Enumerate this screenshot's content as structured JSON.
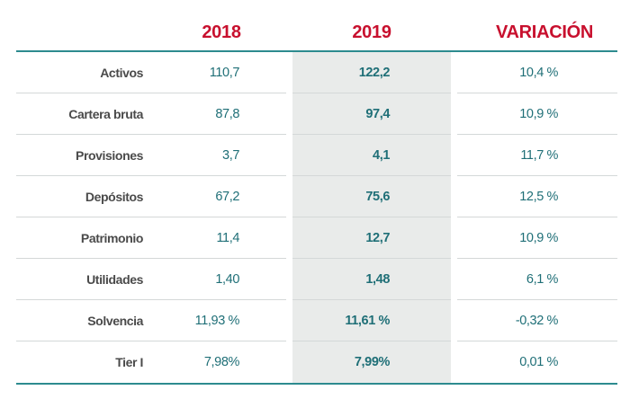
{
  "header": {
    "col_2018": "2018",
    "col_2019": "2019",
    "col_var": "VARIACIÓN"
  },
  "colors": {
    "header_red": "#c8102e",
    "teal": "#1f6f77",
    "rule": "#2d8b8f",
    "highlight": "#e9ebea"
  },
  "rows": [
    {
      "label": "Activos",
      "v2018": "110,7",
      "v2019": "122,2",
      "var": "10,4 %"
    },
    {
      "label": "Cartera bruta",
      "v2018": "87,8",
      "v2019": "97,4",
      "var": "10,9 %"
    },
    {
      "label": "Provisiones",
      "v2018": "3,7",
      "v2019": "4,1",
      "var": "11,7 %"
    },
    {
      "label": "Depósitos",
      "v2018": "67,2",
      "v2019": "75,6",
      "var": "12,5 %"
    },
    {
      "label": "Patrimonio",
      "v2018": "11,4",
      "v2019": "12,7",
      "var": "10,9 %"
    },
    {
      "label": "Utilidades",
      "v2018": "1,40",
      "v2019": "1,48",
      "var": "6,1 %"
    },
    {
      "label": "Solvencia",
      "v2018": "11,93 %",
      "v2019": "11,61 %",
      "var": "-0,32 %"
    },
    {
      "label": "Tier I",
      "v2018": "7,98%",
      "v2019": "7,99%",
      "var": "0,01 %"
    }
  ]
}
